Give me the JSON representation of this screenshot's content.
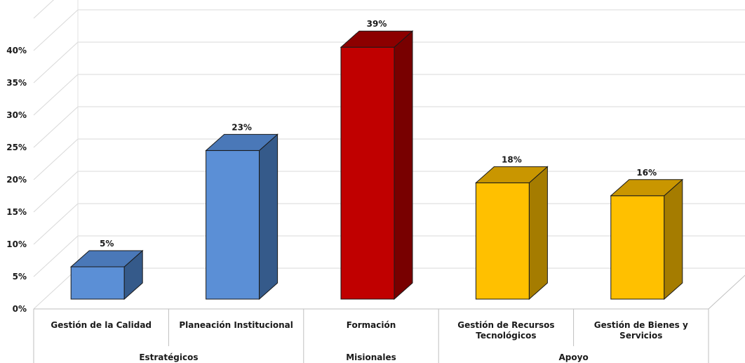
{
  "chart_data": {
    "type": "bar",
    "ylim": [
      0,
      40
    ],
    "yticks": [
      "0%",
      "5%",
      "10%",
      "15%",
      "20%",
      "25%",
      "30%",
      "35%",
      "40%"
    ],
    "categories": [
      [
        "Gestión de la Calidad"
      ],
      [
        "Planeación Institucional"
      ],
      [
        "Formación"
      ],
      [
        "Gestión de Recursos",
        "Tecnológicos"
      ],
      [
        "Gestión de Bienes y",
        "Servicios"
      ]
    ],
    "values": [
      5,
      23,
      39,
      18,
      16
    ],
    "data_labels": [
      "5%",
      "23%",
      "39%",
      "18%",
      "16%"
    ],
    "groups": [
      {
        "label": "Estratégicos",
        "span": [
          0,
          1
        ]
      },
      {
        "label": "Misionales",
        "span": [
          2,
          2
        ]
      },
      {
        "label": "Apoyo",
        "span": [
          3,
          4
        ]
      }
    ],
    "bar_colors": [
      {
        "front": "#5b8fd6",
        "top": "#4a78b8",
        "side": "#355a8a"
      },
      {
        "front": "#5b8fd6",
        "top": "#4a78b8",
        "side": "#355a8a"
      },
      {
        "front": "#c00000",
        "top": "#8c0000",
        "side": "#780000"
      },
      {
        "front": "#ffc000",
        "top": "#c99600",
        "side": "#a57c00"
      },
      {
        "front": "#ffc000",
        "top": "#c99600",
        "side": "#a57c00"
      }
    ],
    "grid": true,
    "legend": "none"
  }
}
